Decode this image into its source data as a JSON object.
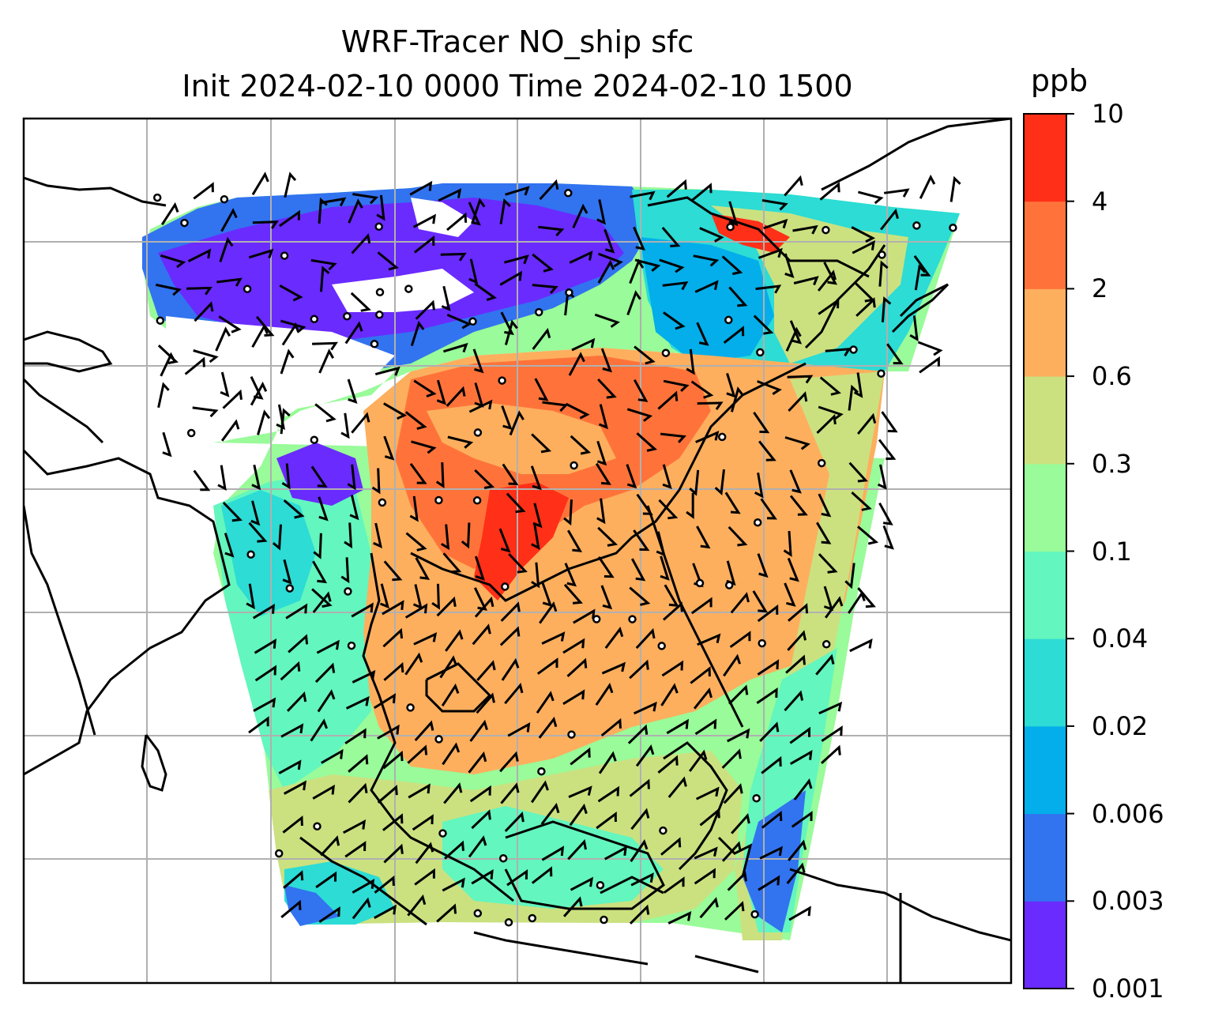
{
  "title": {
    "line1": "WRF-Tracer NO_ship sfc",
    "line2": "Init 2024-02-10 0000 Time 2024-02-10 1500"
  },
  "colorbar": {
    "unit": "ppb",
    "levels": [
      "0.001",
      "0.003",
      "0.006",
      "0.02",
      "0.04",
      "0.1",
      "0.3",
      "0.6",
      "2",
      "4",
      "10"
    ],
    "colors": [
      "#6a2bff",
      "#3273f0",
      "#03aeea",
      "#2cdcd5",
      "#63f6be",
      "#99fb99",
      "#cbe180",
      "#fdaf5e",
      "#ff733a",
      "#ff2f18"
    ]
  },
  "map": {
    "features": [
      "filled tracer field",
      "coastlines",
      "lat-lon gridlines",
      "wind barbs",
      "calm-wind circles"
    ]
  }
}
